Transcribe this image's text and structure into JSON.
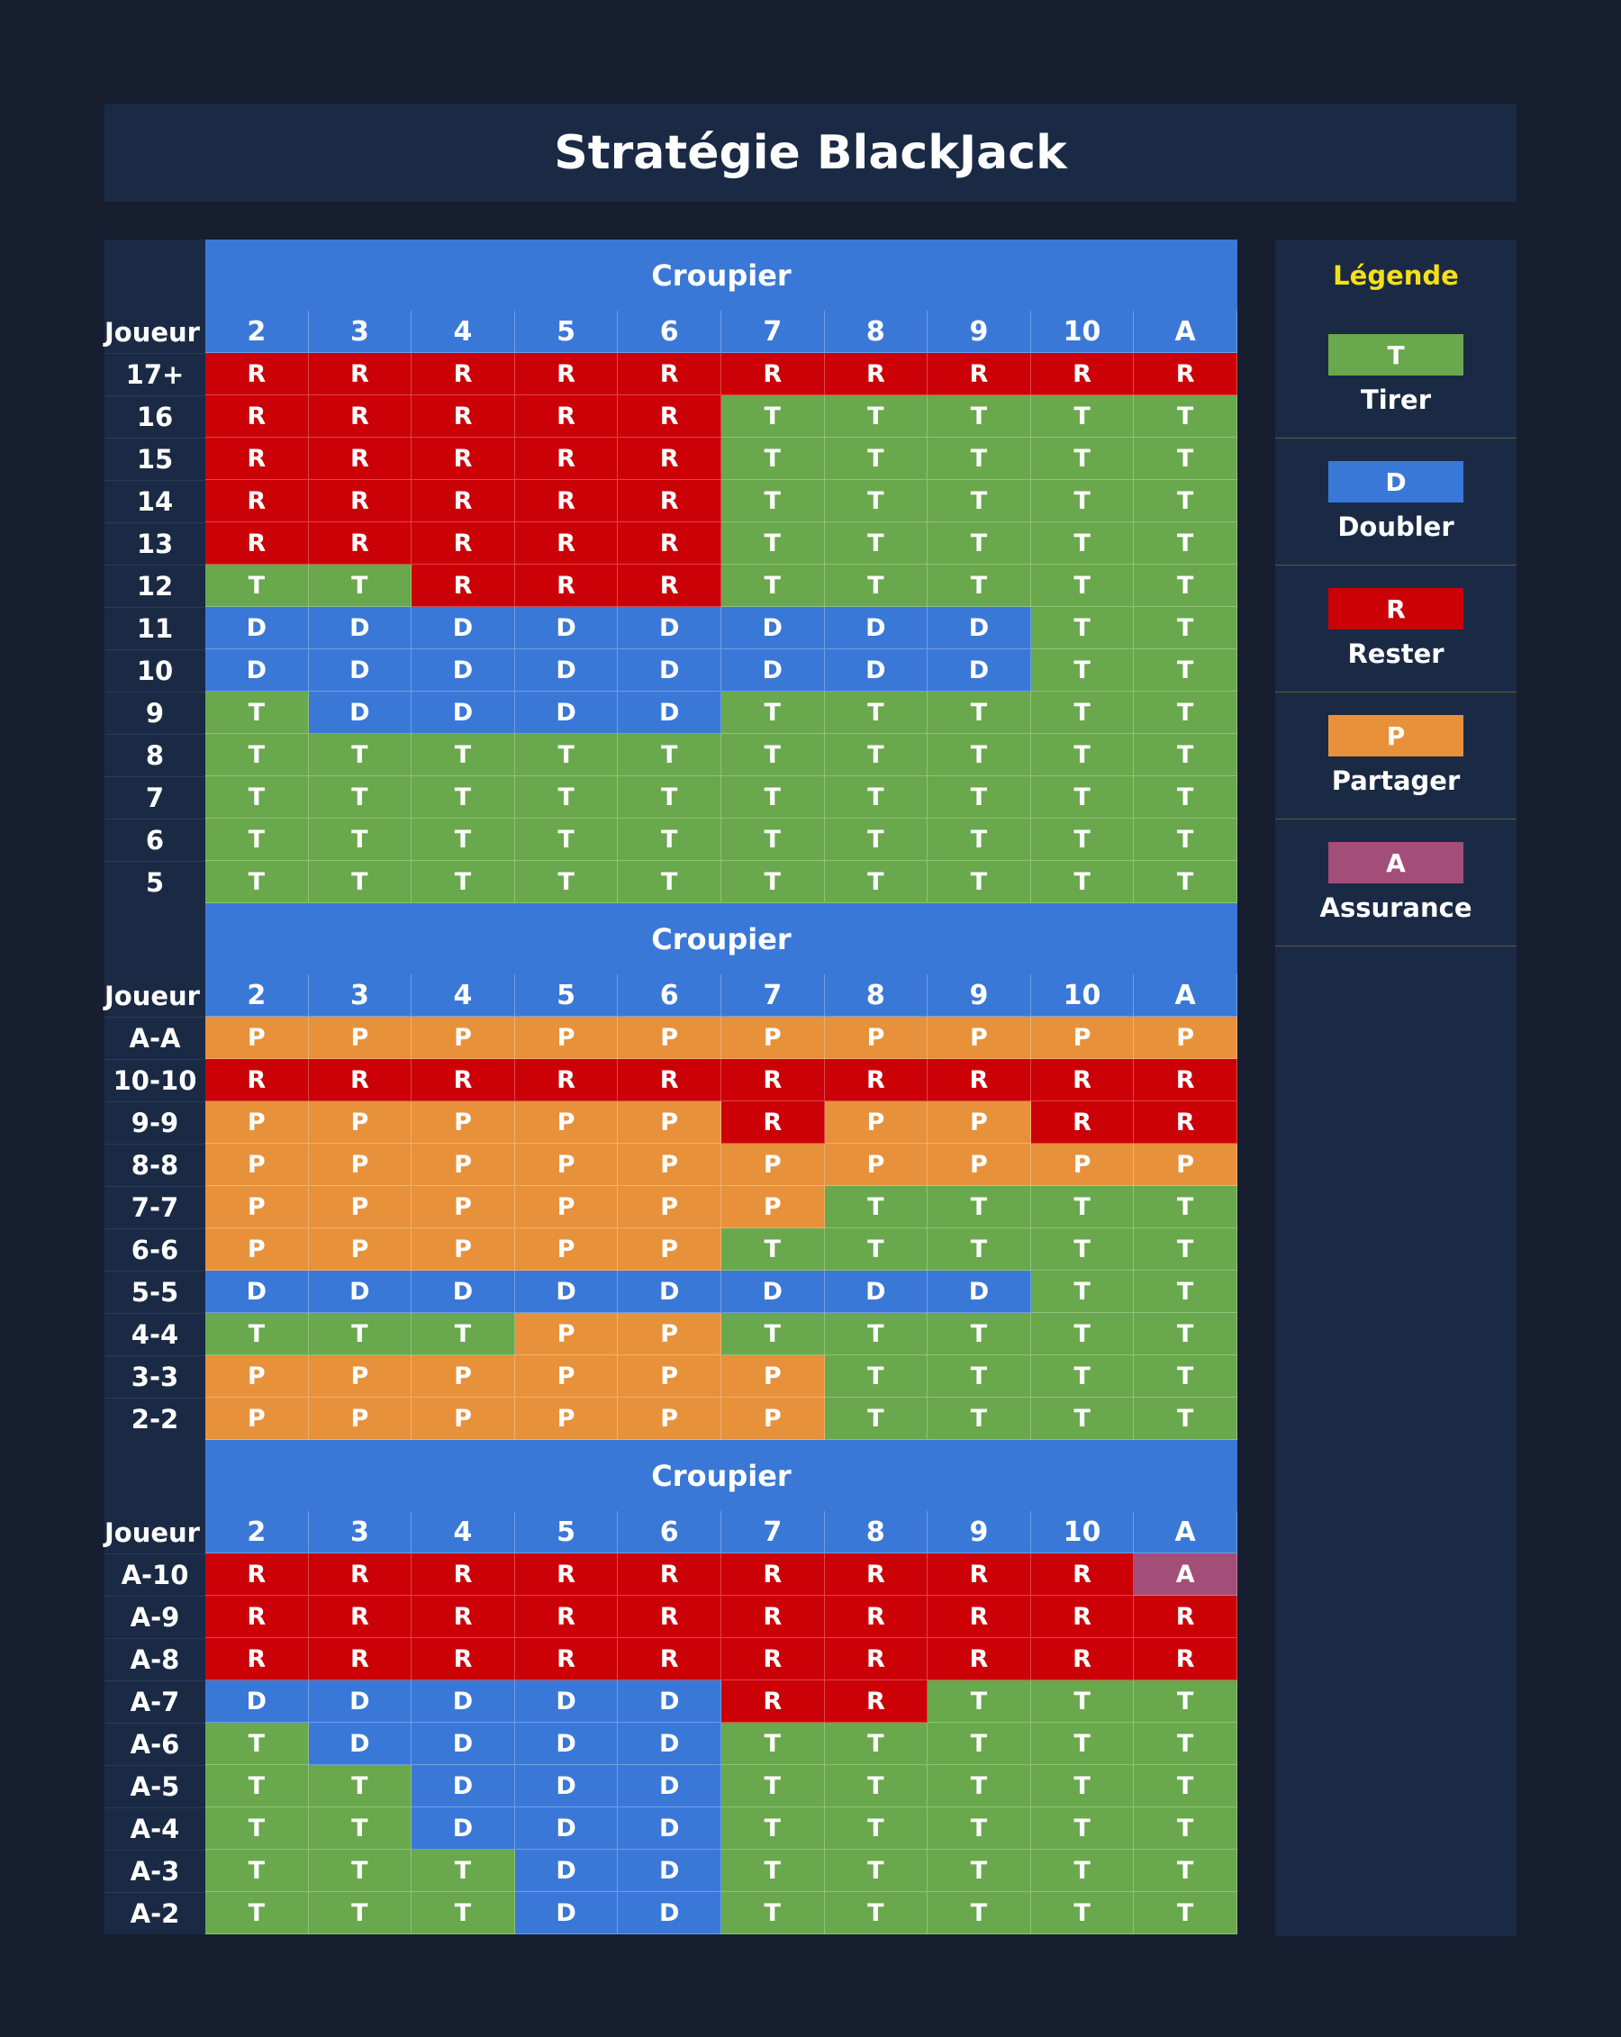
{
  "title": "Stratégie BlackJack",
  "croupier_label": "Croupier",
  "joueur_label": "Joueur",
  "dealer_cards": [
    "2",
    "3",
    "4",
    "5",
    "6",
    "7",
    "8",
    "9",
    "10",
    "A"
  ],
  "colors": {
    "T": "#69a84c",
    "R": "#cc0007",
    "D": "#3a78d8",
    "P": "#e8913b",
    "A": "#a34d79",
    "accent": "#3a78d8",
    "legend_title": "#f5e018"
  },
  "tables": [
    {
      "rows": [
        {
          "label": "17+",
          "cells": [
            "R",
            "R",
            "R",
            "R",
            "R",
            "R",
            "R",
            "R",
            "R",
            "R"
          ]
        },
        {
          "label": "16",
          "cells": [
            "R",
            "R",
            "R",
            "R",
            "R",
            "T",
            "T",
            "T",
            "T",
            "T"
          ]
        },
        {
          "label": "15",
          "cells": [
            "R",
            "R",
            "R",
            "R",
            "R",
            "T",
            "T",
            "T",
            "T",
            "T"
          ]
        },
        {
          "label": "14",
          "cells": [
            "R",
            "R",
            "R",
            "R",
            "R",
            "T",
            "T",
            "T",
            "T",
            "T"
          ]
        },
        {
          "label": "13",
          "cells": [
            "R",
            "R",
            "R",
            "R",
            "R",
            "T",
            "T",
            "T",
            "T",
            "T"
          ]
        },
        {
          "label": "12",
          "cells": [
            "T",
            "T",
            "R",
            "R",
            "R",
            "T",
            "T",
            "T",
            "T",
            "T"
          ]
        },
        {
          "label": "11",
          "cells": [
            "D",
            "D",
            "D",
            "D",
            "D",
            "D",
            "D",
            "D",
            "T",
            "T"
          ]
        },
        {
          "label": "10",
          "cells": [
            "D",
            "D",
            "D",
            "D",
            "D",
            "D",
            "D",
            "D",
            "T",
            "T"
          ]
        },
        {
          "label": "9",
          "cells": [
            "T",
            "D",
            "D",
            "D",
            "D",
            "T",
            "T",
            "T",
            "T",
            "T"
          ]
        },
        {
          "label": "8",
          "cells": [
            "T",
            "T",
            "T",
            "T",
            "T",
            "T",
            "T",
            "T",
            "T",
            "T"
          ]
        },
        {
          "label": "7",
          "cells": [
            "T",
            "T",
            "T",
            "T",
            "T",
            "T",
            "T",
            "T",
            "T",
            "T"
          ]
        },
        {
          "label": "6",
          "cells": [
            "T",
            "T",
            "T",
            "T",
            "T",
            "T",
            "T",
            "T",
            "T",
            "T"
          ]
        },
        {
          "label": "5",
          "cells": [
            "T",
            "T",
            "T",
            "T",
            "T",
            "T",
            "T",
            "T",
            "T",
            "T"
          ]
        }
      ]
    },
    {
      "rows": [
        {
          "label": "A-A",
          "cells": [
            "P",
            "P",
            "P",
            "P",
            "P",
            "P",
            "P",
            "P",
            "P",
            "P"
          ]
        },
        {
          "label": "10-10",
          "cells": [
            "R",
            "R",
            "R",
            "R",
            "R",
            "R",
            "R",
            "R",
            "R",
            "R"
          ]
        },
        {
          "label": "9-9",
          "cells": [
            "P",
            "P",
            "P",
            "P",
            "P",
            "R",
            "P",
            "P",
            "R",
            "R"
          ]
        },
        {
          "label": "8-8",
          "cells": [
            "P",
            "P",
            "P",
            "P",
            "P",
            "P",
            "P",
            "P",
            "P",
            "P"
          ]
        },
        {
          "label": "7-7",
          "cells": [
            "P",
            "P",
            "P",
            "P",
            "P",
            "P",
            "T",
            "T",
            "T",
            "T"
          ]
        },
        {
          "label": "6-6",
          "cells": [
            "P",
            "P",
            "P",
            "P",
            "P",
            "T",
            "T",
            "T",
            "T",
            "T"
          ]
        },
        {
          "label": "5-5",
          "cells": [
            "D",
            "D",
            "D",
            "D",
            "D",
            "D",
            "D",
            "D",
            "T",
            "T"
          ]
        },
        {
          "label": "4-4",
          "cells": [
            "T",
            "T",
            "T",
            "P",
            "P",
            "T",
            "T",
            "T",
            "T",
            "T"
          ]
        },
        {
          "label": "3-3",
          "cells": [
            "P",
            "P",
            "P",
            "P",
            "P",
            "P",
            "T",
            "T",
            "T",
            "T"
          ]
        },
        {
          "label": "2-2",
          "cells": [
            "P",
            "P",
            "P",
            "P",
            "P",
            "P",
            "T",
            "T",
            "T",
            "T"
          ]
        }
      ]
    },
    {
      "rows": [
        {
          "label": "A-10",
          "cells": [
            "R",
            "R",
            "R",
            "R",
            "R",
            "R",
            "R",
            "R",
            "R",
            "A"
          ]
        },
        {
          "label": "A-9",
          "cells": [
            "R",
            "R",
            "R",
            "R",
            "R",
            "R",
            "R",
            "R",
            "R",
            "R"
          ]
        },
        {
          "label": "A-8",
          "cells": [
            "R",
            "R",
            "R",
            "R",
            "R",
            "R",
            "R",
            "R",
            "R",
            "R"
          ]
        },
        {
          "label": "A-7",
          "cells": [
            "D",
            "D",
            "D",
            "D",
            "D",
            "R",
            "R",
            "T",
            "T",
            "T"
          ]
        },
        {
          "label": "A-6",
          "cells": [
            "T",
            "D",
            "D",
            "D",
            "D",
            "T",
            "T",
            "T",
            "T",
            "T"
          ]
        },
        {
          "label": "A-5",
          "cells": [
            "T",
            "T",
            "D",
            "D",
            "D",
            "T",
            "T",
            "T",
            "T",
            "T"
          ]
        },
        {
          "label": "A-4",
          "cells": [
            "T",
            "T",
            "D",
            "D",
            "D",
            "T",
            "T",
            "T",
            "T",
            "T"
          ]
        },
        {
          "label": "A-3",
          "cells": [
            "T",
            "T",
            "T",
            "D",
            "D",
            "T",
            "T",
            "T",
            "T",
            "T"
          ]
        },
        {
          "label": "A-2",
          "cells": [
            "T",
            "T",
            "T",
            "D",
            "D",
            "T",
            "T",
            "T",
            "T",
            "T"
          ]
        }
      ]
    }
  ],
  "legend": {
    "title": "Légende",
    "items": [
      {
        "code": "T",
        "label": "Tirer"
      },
      {
        "code": "D",
        "label": "Doubler"
      },
      {
        "code": "R",
        "label": "Rester"
      },
      {
        "code": "P",
        "label": "Partager"
      },
      {
        "code": "A",
        "label": "Assurance"
      }
    ]
  }
}
